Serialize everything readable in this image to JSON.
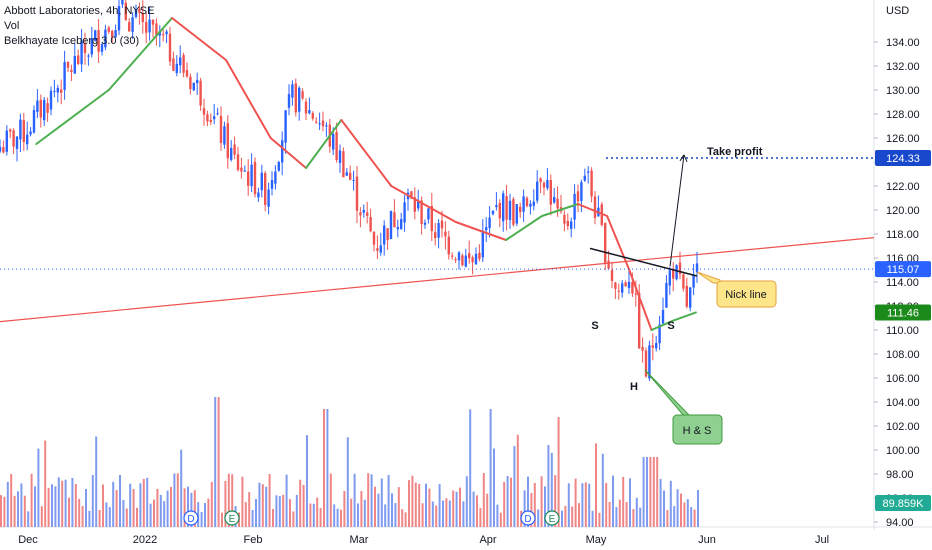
{
  "legend": {
    "symbol_line": "Abbott Laboratories, 4h, NYSE",
    "vol_label": "Vol",
    "indicator_line": "Belkhayate Iceberg 3.0 (30)"
  },
  "axis": {
    "currency": "USD",
    "price_ticks": [
      "134.00",
      "132.00",
      "130.00",
      "128.00",
      "126.00",
      "124.00",
      "122.00",
      "120.00",
      "118.00",
      "116.00",
      "114.00",
      "112.00",
      "110.00",
      "108.00",
      "106.00",
      "104.00",
      "102.00",
      "100.00",
      "98.00",
      "96.00",
      "94.00"
    ],
    "time_ticks": [
      "Dec",
      "2022",
      "Feb",
      "Mar",
      "Apr",
      "May",
      "Jun",
      "Jul"
    ]
  },
  "price_labels": {
    "target": {
      "text": "124.33",
      "value": 124.33,
      "color": "#1848cc"
    },
    "last": {
      "text": "115.07",
      "value": 115.07,
      "color": "#2962ff"
    },
    "indicator": {
      "text": "111.46",
      "value": 111.46,
      "color": "#1b8a1b"
    },
    "volume": {
      "text": "89.859K",
      "color": "#22ab94"
    }
  },
  "annotations": {
    "take_profit": "Take profit",
    "neck_line": "Nick line",
    "pattern": "H & S",
    "shoulder_left": "S",
    "head": "H",
    "shoulder_right": "S"
  },
  "events": {
    "dividend_marker": "D",
    "earnings_marker": "E"
  },
  "colors": {
    "up": "#2962ff",
    "down": "#ef5350",
    "ma_down": "#ef5350",
    "ma_up": "#4caf50",
    "vol_up": "#7e9bf0",
    "vol_down": "#f08585"
  },
  "chart_data": {
    "type": "candlestick",
    "title": "Abbott Laboratories, 4h, NYSE",
    "ylabel": "USD",
    "ylim": [
      94,
      137
    ],
    "x_labels": [
      "Dec",
      "2022",
      "Feb",
      "Mar",
      "Apr",
      "May",
      "Jun",
      "Jul"
    ],
    "price_path": [
      [
        "Dec",
        126.5
      ],
      [
        "Dec",
        132
      ],
      [
        "Dec",
        136.5
      ],
      [
        "2022",
        134
      ],
      [
        "2022",
        130
      ],
      [
        "2022",
        124
      ],
      [
        "Feb",
        121.5
      ],
      [
        "Feb",
        129.5
      ],
      [
        "Feb",
        127.5
      ],
      [
        "Feb",
        123.5
      ],
      [
        "Mar",
        117
      ],
      [
        "Mar",
        121
      ],
      [
        "Mar",
        118
      ],
      [
        "Mar",
        115.5
      ],
      [
        "Apr",
        120.5
      ],
      [
        "Apr",
        119.5
      ],
      [
        "Apr",
        123.5
      ],
      [
        "Apr",
        118
      ],
      [
        "Apr",
        123.5
      ],
      [
        "May",
        117.5
      ],
      [
        "May",
        113
      ],
      [
        "May",
        115
      ],
      [
        "May",
        106
      ],
      [
        "May",
        111
      ],
      [
        "May",
        115.5
      ],
      [
        "May",
        112
      ],
      [
        "May",
        115.1
      ]
    ],
    "moving_average": [
      [
        "Dec",
        125.5
      ],
      [
        "Dec",
        130
      ],
      [
        "2022",
        136
      ],
      [
        "2022",
        132.5
      ],
      [
        "Feb",
        126
      ],
      [
        "Feb",
        123.5
      ],
      [
        "Feb",
        127.5
      ],
      [
        "Mar",
        122
      ],
      [
        "Mar",
        119
      ],
      [
        "Apr",
        117.5
      ],
      [
        "Apr",
        119.5
      ],
      [
        "Apr",
        120.5
      ],
      [
        "May",
        119.5
      ],
      [
        "May",
        115
      ],
      [
        "May",
        110
      ],
      [
        "May",
        110.8
      ],
      [
        "May",
        111.46
      ]
    ],
    "volume_peak": 89.859,
    "trendline": {
      "from": [
        "Dec",
        110.7
      ],
      "to": [
        "Jul",
        117.7
      ]
    },
    "neckline": {
      "from": [
        "May",
        116.8
      ],
      "to": [
        "May",
        114.5
      ]
    },
    "target_level": 124.33,
    "last_price": 115.07,
    "indicator_last": 111.46
  }
}
